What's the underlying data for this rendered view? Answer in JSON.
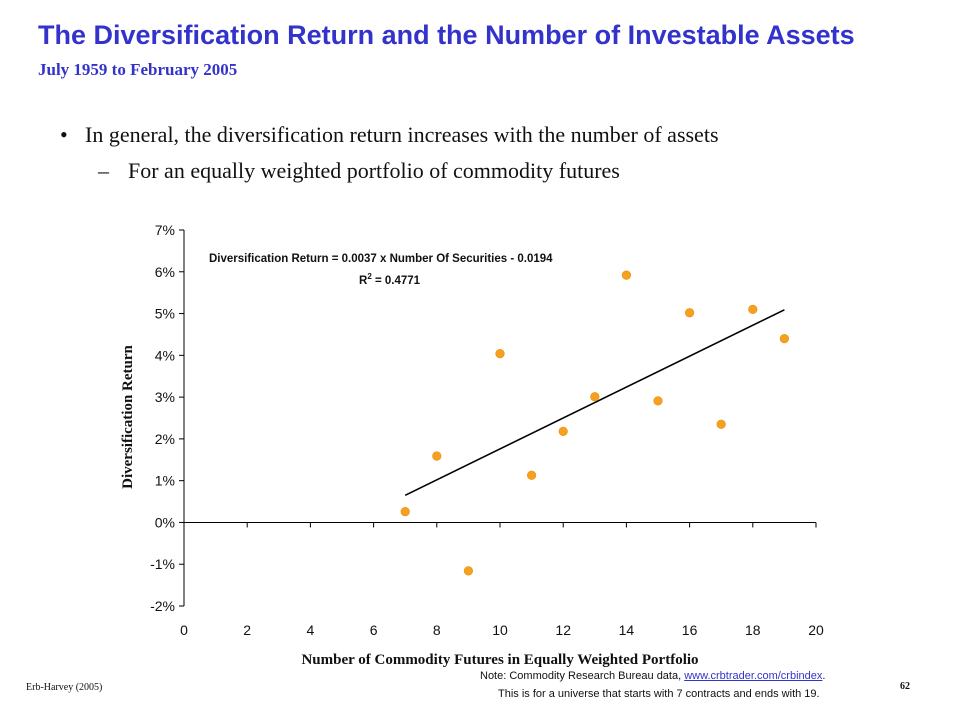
{
  "slide": {
    "title": "The Diversification Return and the Number of Investable Assets",
    "subtitle": "July 1959 to February 2005",
    "bullet": "In general, the diversification return increases with the number of assets",
    "bullet_mark": "•",
    "subbullet": "For an equally weighted portfolio of commodity futures",
    "subbullet_mark": "–",
    "footer_left": "Erb-Harvey (2005)",
    "page_number": "62",
    "note_prefix": "Note: Commodity Research Bureau data, ",
    "note_link": "www.crbtrader.com/crbindex",
    "note_suffix": ".",
    "note_line2": "This is for a universe that starts with 7 contracts and ends with 19."
  },
  "chart_data": {
    "type": "scatter",
    "xlabel": "Number of Commodity Futures in Equally Weighted Portfolio",
    "ylabel": "Diversification Return",
    "xlim": [
      0,
      20
    ],
    "ylim": [
      -0.02,
      0.07
    ],
    "x_ticks": [
      0,
      2,
      4,
      6,
      8,
      10,
      12,
      14,
      16,
      18,
      20
    ],
    "x_tick_labels": [
      "0",
      "2",
      "4",
      "6",
      "8",
      "10",
      "12",
      "14",
      "16",
      "18",
      "20"
    ],
    "y_ticks": [
      -0.02,
      -0.01,
      0,
      0.01,
      0.02,
      0.03,
      0.04,
      0.05,
      0.06,
      0.07
    ],
    "y_tick_labels": [
      "-2%",
      "-1%",
      "0%",
      "1%",
      "2%",
      "3%",
      "4%",
      "5%",
      "6%",
      "7%"
    ],
    "grid": false,
    "marker_color": "#f5a11f",
    "points": [
      {
        "x": 7,
        "y": 0.0026
      },
      {
        "x": 8,
        "y": 0.0159
      },
      {
        "x": 9,
        "y": -0.0116
      },
      {
        "x": 10,
        "y": 0.0404
      },
      {
        "x": 11,
        "y": 0.0113
      },
      {
        "x": 12,
        "y": 0.0218
      },
      {
        "x": 13,
        "y": 0.0301
      },
      {
        "x": 14,
        "y": 0.0592
      },
      {
        "x": 15,
        "y": 0.0291
      },
      {
        "x": 16,
        "y": 0.0502
      },
      {
        "x": 17,
        "y": 0.0235
      },
      {
        "x": 18,
        "y": 0.051
      },
      {
        "x": 19,
        "y": 0.044
      }
    ],
    "trendline": {
      "x": [
        7,
        19
      ],
      "y": [
        0.0065,
        0.0509
      ]
    },
    "equation": "Diversification Return = 0.0037 x Number Of Securities  - 0.0194",
    "r2_label": "R",
    "r2_sup": "2",
    "r2_value": " = 0.4771"
  }
}
